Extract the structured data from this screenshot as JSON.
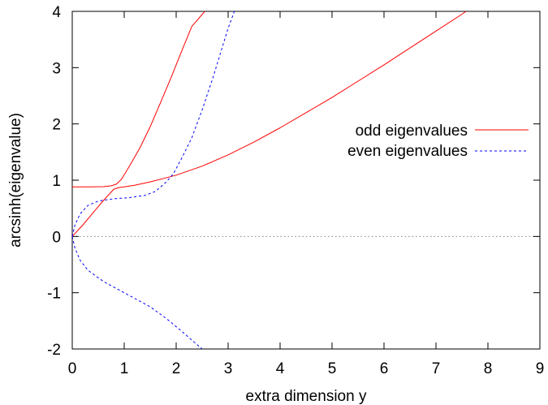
{
  "chart_data": {
    "type": "line",
    "title": "",
    "xlabel": "extra dimension y",
    "ylabel": "arcsinh(eigenvalue)",
    "xlim": [
      0,
      9
    ],
    "ylim": [
      -2,
      4
    ],
    "xticks": [
      0,
      1,
      2,
      3,
      4,
      5,
      6,
      7,
      8,
      9
    ],
    "yticks": [
      -2,
      -1,
      0,
      1,
      2,
      3,
      4
    ],
    "grid": false,
    "legend_position": "right",
    "zero_line": {
      "y": 0,
      "style": "dotted",
      "color": "#808080"
    },
    "series": [
      {
        "name": "odd eigenvalues",
        "color": "#ff0000",
        "dash": "solid",
        "curves": [
          [
            [
              0,
              0.88
            ],
            [
              0.3,
              0.88
            ],
            [
              0.6,
              0.885
            ],
            [
              0.75,
              0.9
            ],
            [
              0.85,
              0.93
            ],
            [
              0.95,
              1.02
            ],
            [
              1.1,
              1.25
            ],
            [
              1.3,
              1.57
            ],
            [
              1.5,
              1.95
            ],
            [
              1.7,
              2.38
            ],
            [
              1.9,
              2.82
            ],
            [
              2.1,
              3.28
            ],
            [
              2.3,
              3.73
            ],
            [
              2.55,
              4.0
            ]
          ],
          [
            [
              0,
              0.0
            ],
            [
              0.2,
              0.2
            ],
            [
              0.4,
              0.42
            ],
            [
              0.6,
              0.64
            ],
            [
              0.8,
              0.84
            ],
            [
              0.9,
              0.87
            ],
            [
              1.0,
              0.88
            ],
            [
              1.2,
              0.91
            ],
            [
              1.5,
              0.97
            ],
            [
              1.8,
              1.04
            ],
            [
              2.0,
              1.09
            ],
            [
              2.5,
              1.25
            ],
            [
              3.0,
              1.45
            ],
            [
              3.5,
              1.68
            ],
            [
              4.0,
              1.93
            ],
            [
              4.5,
              2.2
            ],
            [
              5.0,
              2.47
            ],
            [
              5.5,
              2.76
            ],
            [
              6.0,
              3.05
            ],
            [
              6.5,
              3.35
            ],
            [
              7.0,
              3.65
            ],
            [
              7.5,
              3.95
            ],
            [
              7.58,
              4.0
            ]
          ]
        ]
      },
      {
        "name": "even eigenvalues",
        "color": "#0000ff",
        "dash": "dashed",
        "curves": [
          [
            [
              0,
              0.0
            ],
            [
              0.05,
              0.2
            ],
            [
              0.15,
              0.4
            ],
            [
              0.3,
              0.55
            ],
            [
              0.5,
              0.63
            ],
            [
              0.8,
              0.67
            ],
            [
              1.1,
              0.69
            ],
            [
              1.4,
              0.73
            ],
            [
              1.6,
              0.8
            ],
            [
              1.8,
              0.96
            ],
            [
              1.95,
              1.12
            ],
            [
              2.1,
              1.38
            ],
            [
              2.3,
              1.75
            ],
            [
              2.5,
              2.25
            ],
            [
              2.7,
              2.8
            ],
            [
              2.85,
              3.25
            ],
            [
              3.0,
              3.7
            ],
            [
              3.12,
              4.0
            ]
          ],
          [
            [
              0,
              0.0
            ],
            [
              0.05,
              -0.2
            ],
            [
              0.15,
              -0.42
            ],
            [
              0.3,
              -0.6
            ],
            [
              0.6,
              -0.8
            ],
            [
              0.9,
              -0.95
            ],
            [
              1.2,
              -1.1
            ],
            [
              1.5,
              -1.25
            ],
            [
              1.8,
              -1.45
            ],
            [
              2.1,
              -1.68
            ],
            [
              2.35,
              -1.88
            ],
            [
              2.5,
              -2.0
            ]
          ]
        ]
      }
    ]
  }
}
